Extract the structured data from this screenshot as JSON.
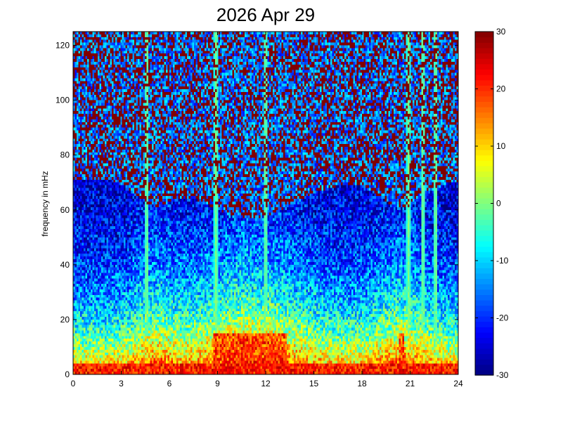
{
  "chart_data": {
    "type": "heatmap",
    "title": "2026 Apr 29",
    "xlabel": "",
    "ylabel": "frequency in mHz",
    "xlim": [
      0,
      24
    ],
    "ylim": [
      0,
      125
    ],
    "xticks": [
      "0",
      "3",
      "6",
      "9",
      "12",
      "15",
      "18",
      "21",
      "24"
    ],
    "yticks": [
      "0",
      "20",
      "40",
      "60",
      "80",
      "100",
      "120"
    ],
    "colorbar": {
      "colormap": "jet",
      "clim": [
        -30,
        30
      ],
      "ticks": [
        "-30",
        "-20",
        "-10",
        "0",
        "10",
        "20",
        "30"
      ]
    },
    "grid": false,
    "description_values": {
      "x_bins": 220,
      "y_bins": 125,
      "noise_floor_value": 30,
      "low_freq_peak_value": 26,
      "bright_vertical_streaks_hours": [
        4.6,
        8.9,
        12.0,
        20.9,
        21.8,
        22.6
      ]
    }
  }
}
